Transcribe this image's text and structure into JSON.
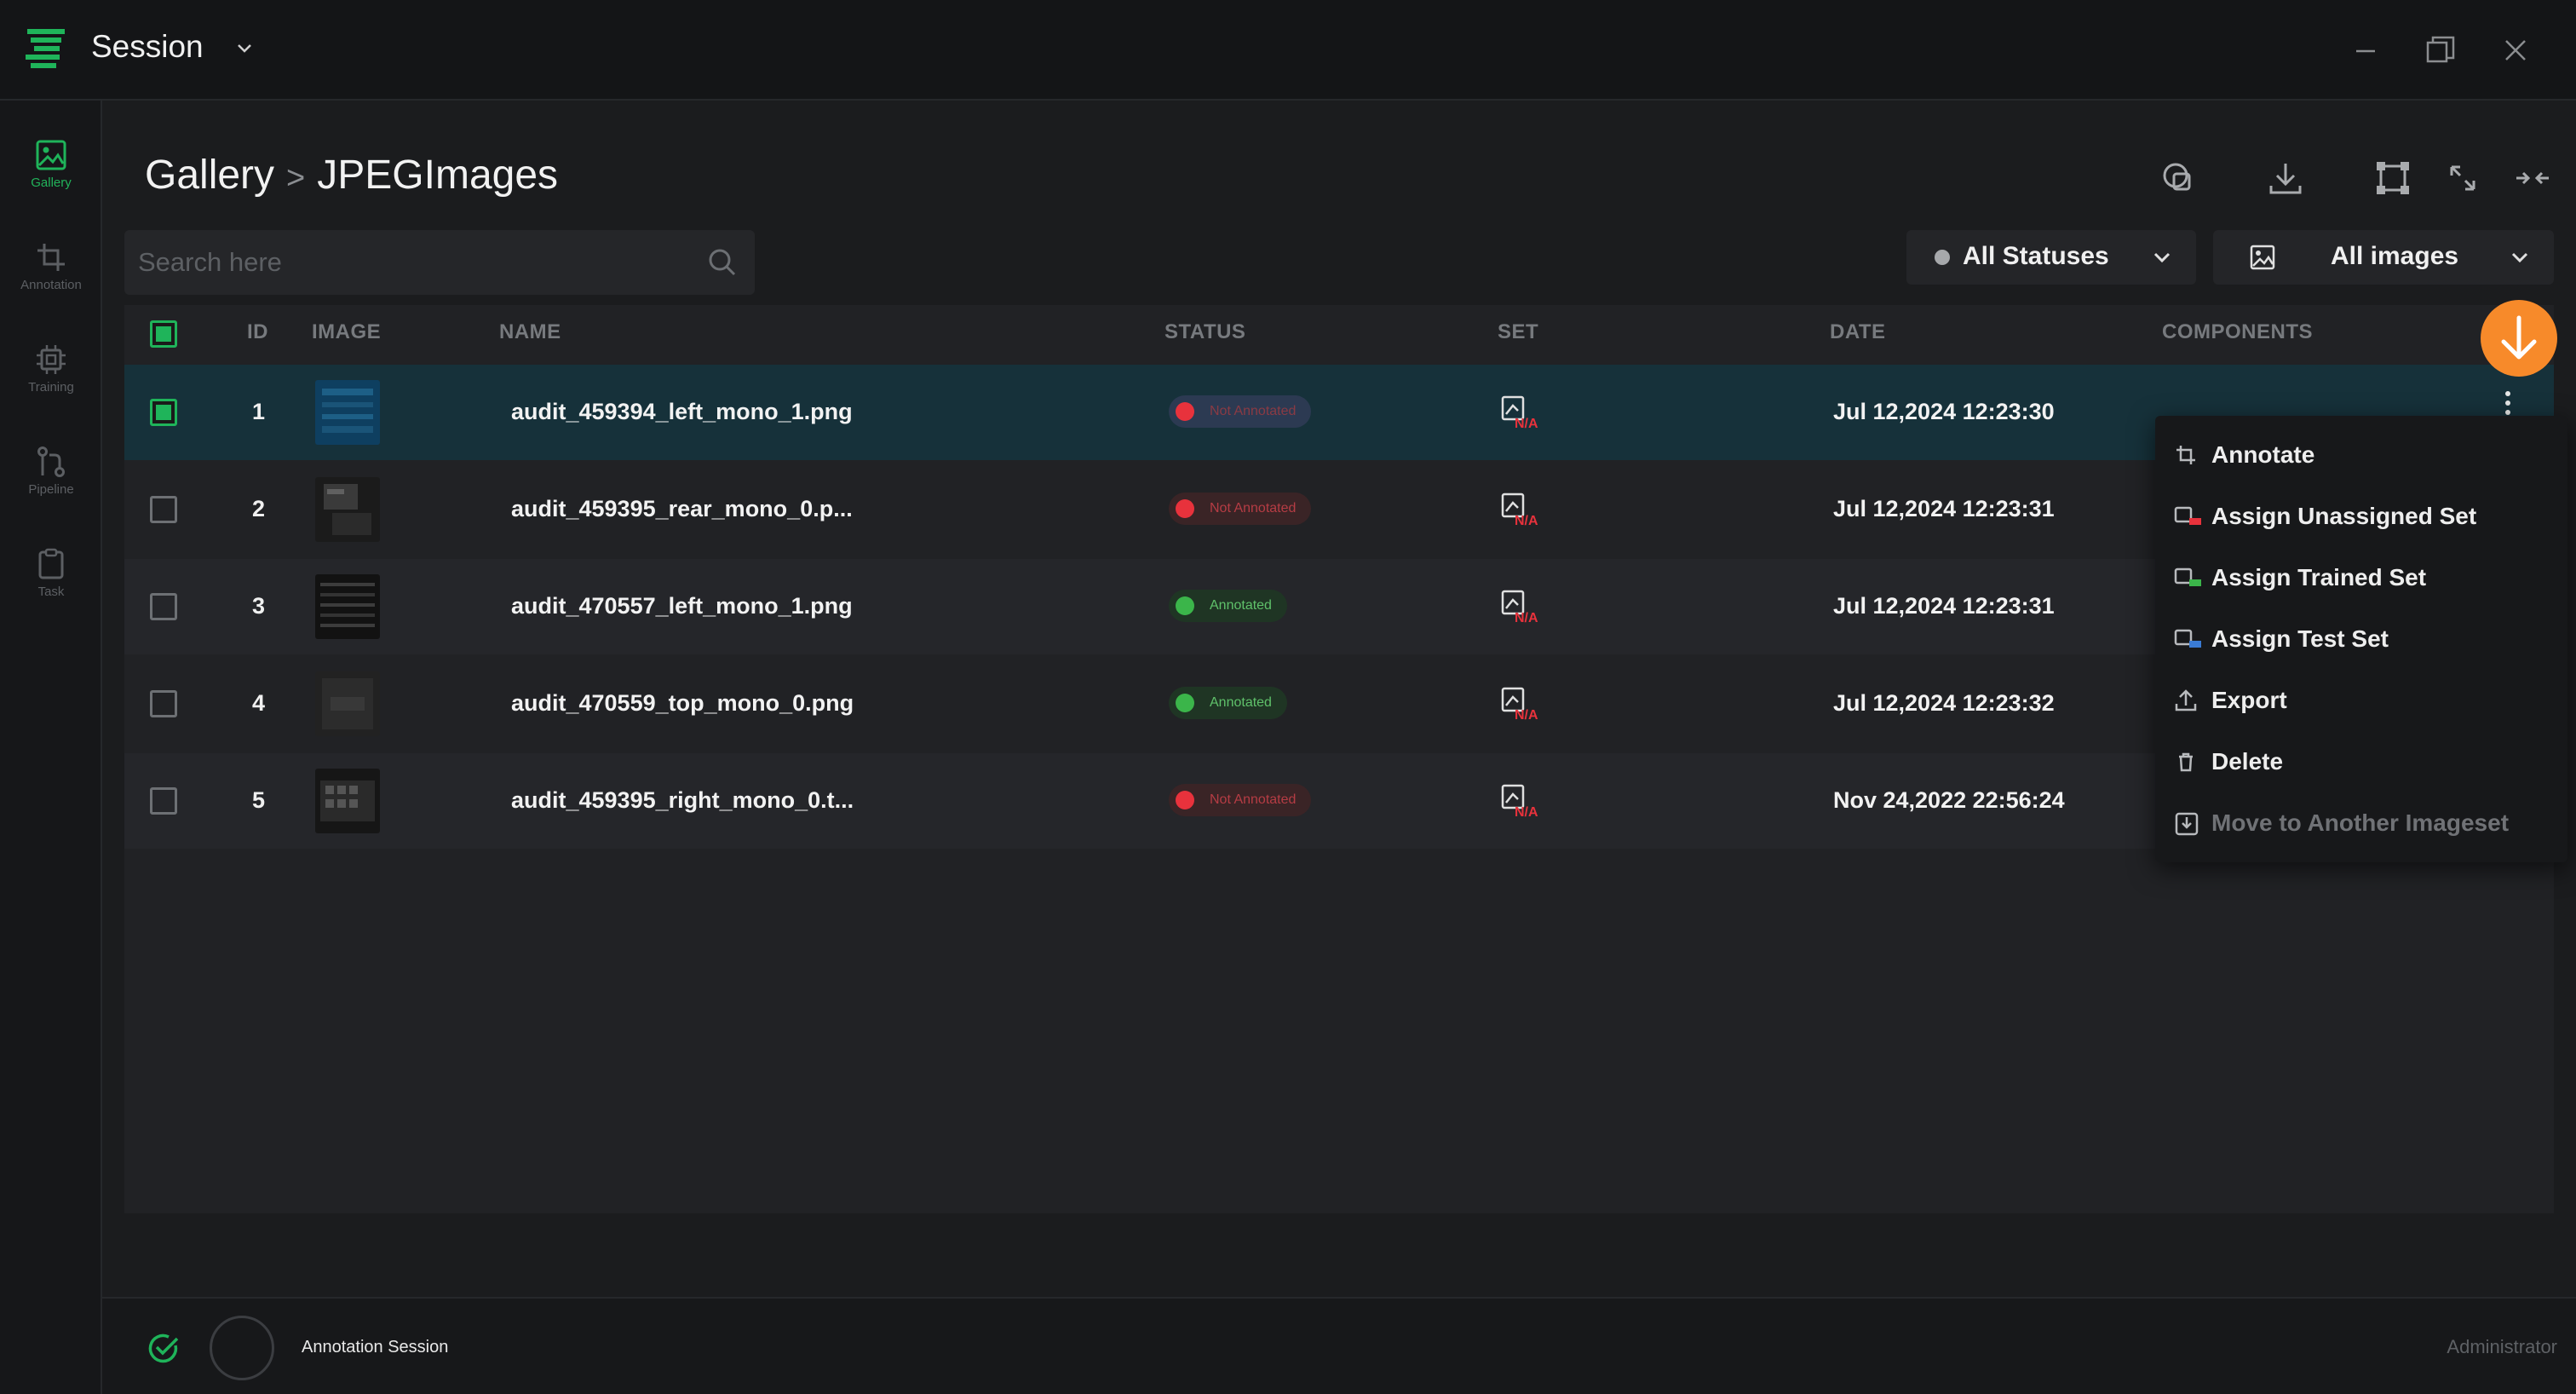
{
  "app": {
    "title": "Session"
  },
  "sidebar": {
    "items": [
      {
        "label": "Gallery",
        "icon": "image-icon",
        "active": true
      },
      {
        "label": "Annotation",
        "icon": "crop-icon",
        "active": false
      },
      {
        "label": "Training",
        "icon": "chip-icon",
        "active": false
      },
      {
        "label": "Pipeline",
        "icon": "pipeline-icon",
        "active": false
      },
      {
        "label": "Task",
        "icon": "clipboard-icon",
        "active": false
      }
    ]
  },
  "breadcrumb": {
    "root": "Gallery",
    "separator": ">",
    "current": "JPEGImages"
  },
  "search": {
    "placeholder": "Search here"
  },
  "filters": {
    "status": "All Statuses",
    "images": "All images"
  },
  "table": {
    "columns": [
      "ID",
      "IMAGE",
      "NAME",
      "STATUS",
      "SET",
      "DATE",
      "COMPONENTS"
    ],
    "set_na": "N/A",
    "rows": [
      {
        "id": "1",
        "name": "audit_459394_left_mono_1.png",
        "status": "Not Annotated",
        "date": "Jul 12,2024 12:23:30",
        "selected": true
      },
      {
        "id": "2",
        "name": "audit_459395_rear_mono_0.p...",
        "status": "Not Annotated",
        "date": "Jul 12,2024 12:23:31",
        "selected": false
      },
      {
        "id": "3",
        "name": "audit_470557_left_mono_1.png",
        "status": "Annotated",
        "date": "Jul 12,2024 12:23:31",
        "selected": false
      },
      {
        "id": "4",
        "name": "audit_470559_top_mono_0.png",
        "status": "Annotated",
        "date": "Jul 12,2024 12:23:32",
        "selected": false
      },
      {
        "id": "5",
        "name": "audit_459395_right_mono_0.t...",
        "status": "Not Annotated",
        "date": "Nov 24,2022 22:56:24",
        "selected": false
      }
    ]
  },
  "context_menu": {
    "items": [
      {
        "label": "Annotate",
        "icon": "crop-icon"
      },
      {
        "label": "Assign Unassigned Set",
        "icon": "set-unassigned-icon"
      },
      {
        "label": "Assign Trained Set",
        "icon": "set-trained-icon"
      },
      {
        "label": "Assign Test Set",
        "icon": "set-test-icon"
      },
      {
        "label": "Export",
        "icon": "upload-icon"
      },
      {
        "label": "Delete",
        "icon": "trash-icon"
      },
      {
        "label": "Move to Another Imageset",
        "icon": "move-icon",
        "disabled": true
      }
    ]
  },
  "footer": {
    "session_label": "Annotation Session",
    "user": "Administrator"
  },
  "colors": {
    "accent": "#1fb45a",
    "selected_row": "#16313a",
    "not_annotated": "#e8323c",
    "annotated": "#3bb54a",
    "fab": "#f78a2a"
  }
}
